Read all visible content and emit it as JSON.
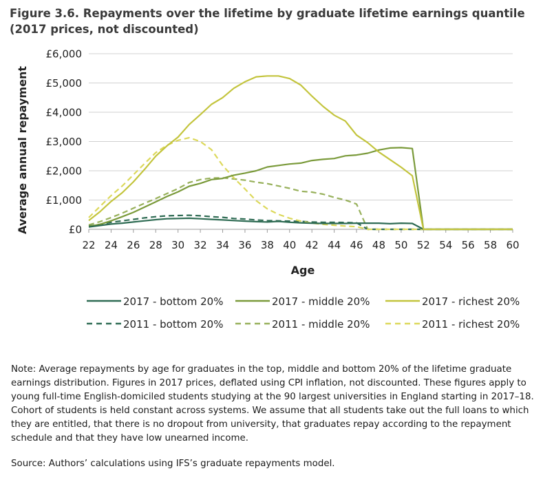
{
  "title_line1": "Figure 3.6. Repayments over the lifetime by graduate lifetime earnings quantile",
  "title_line2": "(2017 prices, not discounted)",
  "note": "Note: Average repayments by age for graduates in the top, middle and bottom 20% of the lifetime graduate earnings distribution. Figures in 2017 prices, deflated using CPI inflation, not discounted. These figures apply to young full-time English-domiciled students studying at the 90 largest universities in England starting in 2017–18. Cohort of students is held constant across systems. We assume that all students take out the full loans to which they are entitled, that there is no dropout from university, that graduates repay according to the repayment schedule and that they have low unearned income.",
  "source": "Source: Authors’ calculations using IFS’s graduate repayments model.",
  "chart_data": {
    "type": "line",
    "xlabel": "Age",
    "ylabel": "Average annual repayment",
    "xlim": [
      22,
      60
    ],
    "ylim": [
      0,
      6000
    ],
    "x_ticks": [
      22,
      24,
      26,
      28,
      30,
      32,
      34,
      36,
      38,
      40,
      42,
      44,
      46,
      48,
      50,
      52,
      54,
      56,
      58,
      60
    ],
    "y_ticks": [
      0,
      1000,
      2000,
      3000,
      4000,
      5000,
      6000
    ],
    "y_tick_labels": [
      "£0",
      "£1,000",
      "£2,000",
      "£3,000",
      "£4,000",
      "£5,000",
      "£6,000"
    ],
    "grid": "horizontal",
    "legend_position": "bottom",
    "series": [
      {
        "name": "2017 - bottom 20%",
        "color": "#2e6b53",
        "dashed": false,
        "points": [
          [
            22,
            80
          ],
          [
            23,
            130
          ],
          [
            24,
            180
          ],
          [
            25,
            210
          ],
          [
            26,
            250
          ],
          [
            27,
            290
          ],
          [
            28,
            330
          ],
          [
            29,
            360
          ],
          [
            30,
            370
          ],
          [
            31,
            380
          ],
          [
            32,
            360
          ],
          [
            33,
            340
          ],
          [
            34,
            320
          ],
          [
            35,
            300
          ],
          [
            36,
            280
          ],
          [
            37,
            260
          ],
          [
            38,
            250
          ],
          [
            39,
            270
          ],
          [
            40,
            240
          ],
          [
            41,
            220
          ],
          [
            42,
            210
          ],
          [
            43,
            200
          ],
          [
            44,
            200
          ],
          [
            45,
            200
          ],
          [
            46,
            210
          ],
          [
            47,
            210
          ],
          [
            48,
            210
          ],
          [
            49,
            190
          ],
          [
            50,
            210
          ],
          [
            51,
            200
          ],
          [
            52,
            0
          ],
          [
            53,
            0
          ],
          [
            60,
            0
          ]
        ]
      },
      {
        "name": "2017 - middle 20%",
        "color": "#7a9a3a",
        "dashed": false,
        "points": [
          [
            22,
            100
          ],
          [
            23,
            170
          ],
          [
            24,
            290
          ],
          [
            25,
            430
          ],
          [
            26,
            580
          ],
          [
            27,
            760
          ],
          [
            28,
            940
          ],
          [
            29,
            1120
          ],
          [
            30,
            1280
          ],
          [
            31,
            1470
          ],
          [
            32,
            1570
          ],
          [
            33,
            1700
          ],
          [
            34,
            1740
          ],
          [
            35,
            1850
          ],
          [
            36,
            1920
          ],
          [
            37,
            2000
          ],
          [
            38,
            2130
          ],
          [
            39,
            2180
          ],
          [
            40,
            2230
          ],
          [
            41,
            2260
          ],
          [
            42,
            2350
          ],
          [
            43,
            2390
          ],
          [
            44,
            2420
          ],
          [
            45,
            2510
          ],
          [
            46,
            2540
          ],
          [
            47,
            2600
          ],
          [
            48,
            2710
          ],
          [
            49,
            2780
          ],
          [
            50,
            2790
          ],
          [
            51,
            2760
          ],
          [
            52,
            0
          ],
          [
            53,
            0
          ],
          [
            60,
            0
          ]
        ]
      },
      {
        "name": "2017 - richest 20%",
        "color": "#c3c43c",
        "dashed": false,
        "points": [
          [
            22,
            300
          ],
          [
            23,
            600
          ],
          [
            24,
            950
          ],
          [
            25,
            1250
          ],
          [
            26,
            1620
          ],
          [
            27,
            2050
          ],
          [
            28,
            2500
          ],
          [
            29,
            2850
          ],
          [
            30,
            3150
          ],
          [
            31,
            3580
          ],
          [
            32,
            3920
          ],
          [
            33,
            4270
          ],
          [
            34,
            4500
          ],
          [
            35,
            4820
          ],
          [
            36,
            5040
          ],
          [
            37,
            5210
          ],
          [
            38,
            5240
          ],
          [
            39,
            5240
          ],
          [
            40,
            5150
          ],
          [
            41,
            4930
          ],
          [
            42,
            4550
          ],
          [
            43,
            4200
          ],
          [
            44,
            3900
          ],
          [
            45,
            3700
          ],
          [
            46,
            3220
          ],
          [
            47,
            2960
          ],
          [
            48,
            2640
          ],
          [
            49,
            2380
          ],
          [
            50,
            2120
          ],
          [
            51,
            1830
          ],
          [
            52,
            0
          ],
          [
            53,
            0
          ],
          [
            60,
            0
          ]
        ]
      },
      {
        "name": "2011 - bottom 20%",
        "color": "#2e6b53",
        "dashed": true,
        "points": [
          [
            22,
            110
          ],
          [
            23,
            170
          ],
          [
            24,
            240
          ],
          [
            25,
            290
          ],
          [
            26,
            340
          ],
          [
            27,
            390
          ],
          [
            28,
            430
          ],
          [
            29,
            460
          ],
          [
            30,
            470
          ],
          [
            31,
            480
          ],
          [
            32,
            460
          ],
          [
            33,
            430
          ],
          [
            34,
            410
          ],
          [
            35,
            370
          ],
          [
            36,
            350
          ],
          [
            37,
            320
          ],
          [
            38,
            300
          ],
          [
            39,
            290
          ],
          [
            40,
            280
          ],
          [
            41,
            270
          ],
          [
            42,
            250
          ],
          [
            43,
            240
          ],
          [
            44,
            240
          ],
          [
            45,
            230
          ],
          [
            46,
            220
          ],
          [
            47,
            0
          ],
          [
            48,
            0
          ],
          [
            60,
            0
          ]
        ]
      },
      {
        "name": "2011 - middle 20%",
        "color": "#97b05a",
        "dashed": true,
        "points": [
          [
            22,
            150
          ],
          [
            23,
            260
          ],
          [
            24,
            400
          ],
          [
            25,
            550
          ],
          [
            26,
            720
          ],
          [
            27,
            890
          ],
          [
            28,
            1050
          ],
          [
            29,
            1220
          ],
          [
            30,
            1390
          ],
          [
            31,
            1600
          ],
          [
            32,
            1700
          ],
          [
            33,
            1750
          ],
          [
            34,
            1760
          ],
          [
            35,
            1720
          ],
          [
            36,
            1680
          ],
          [
            37,
            1610
          ],
          [
            38,
            1560
          ],
          [
            39,
            1480
          ],
          [
            40,
            1400
          ],
          [
            41,
            1300
          ],
          [
            42,
            1270
          ],
          [
            43,
            1200
          ],
          [
            44,
            1090
          ],
          [
            45,
            1000
          ],
          [
            46,
            860
          ],
          [
            47,
            0
          ],
          [
            48,
            0
          ],
          [
            60,
            0
          ]
        ]
      },
      {
        "name": "2011 - richest 20%",
        "color": "#dcd85a",
        "dashed": true,
        "points": [
          [
            22,
            400
          ],
          [
            23,
            780
          ],
          [
            24,
            1150
          ],
          [
            25,
            1480
          ],
          [
            26,
            1860
          ],
          [
            27,
            2250
          ],
          [
            28,
            2620
          ],
          [
            29,
            2870
          ],
          [
            30,
            3040
          ],
          [
            31,
            3130
          ],
          [
            32,
            3000
          ],
          [
            33,
            2720
          ],
          [
            34,
            2180
          ],
          [
            35,
            1760
          ],
          [
            36,
            1380
          ],
          [
            37,
            980
          ],
          [
            38,
            700
          ],
          [
            39,
            510
          ],
          [
            40,
            380
          ],
          [
            41,
            280
          ],
          [
            42,
            210
          ],
          [
            43,
            170
          ],
          [
            44,
            140
          ],
          [
            45,
            110
          ],
          [
            46,
            90
          ],
          [
            47,
            0
          ],
          [
            48,
            0
          ],
          [
            60,
            0
          ]
        ]
      }
    ]
  }
}
